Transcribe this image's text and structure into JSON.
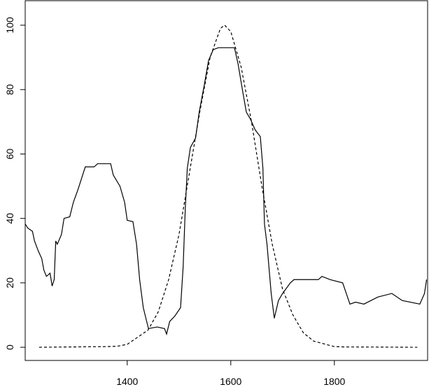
{
  "chart_data": {
    "type": "line",
    "xlim": [
      1203,
      1980
    ],
    "ylim": [
      -4.1,
      107.6
    ],
    "xticks": [
      1400,
      1600,
      1800
    ],
    "yticks": [
      0,
      20,
      40,
      60,
      80,
      100
    ],
    "series": [
      {
        "color": "#000000",
        "dash": false,
        "x": [
          1203,
          1208,
          1217,
          1221,
          1228,
          1235,
          1239,
          1244,
          1251,
          1255,
          1259,
          1262,
          1265,
          1273,
          1278,
          1289,
          1296,
          1305,
          1314,
          1319,
          1336,
          1343,
          1368,
          1373,
          1386,
          1395,
          1400,
          1411,
          1418,
          1424,
          1431,
          1441,
          1458,
          1472,
          1476,
          1482,
          1492,
          1503,
          1508,
          1512,
          1516,
          1522,
          1532,
          1539,
          1549,
          1557,
          1566,
          1576,
          1607,
          1614,
          1623,
          1630,
          1638,
          1647,
          1657,
          1662,
          1665,
          1670,
          1678,
          1684,
          1692,
          1700,
          1715,
          1722,
          1769,
          1776,
          1792,
          1816,
          1823,
          1830,
          1841,
          1857,
          1884,
          1911,
          1931,
          1965,
          1974,
          1978
        ],
        "values": [
          38.3,
          37,
          36,
          33,
          30,
          27.5,
          24,
          22,
          23,
          19,
          21,
          33,
          32,
          35,
          40,
          40.5,
          45,
          49,
          53.5,
          56,
          56,
          57,
          57,
          53.5,
          50,
          45,
          39.4,
          39,
          32,
          21,
          12.3,
          5.8,
          6.3,
          5.8,
          4.1,
          8,
          9.7,
          12.3,
          25,
          42.6,
          55.6,
          62,
          65,
          73,
          81.6,
          89,
          92.4,
          93,
          93,
          88,
          79.4,
          73,
          70.8,
          67.5,
          65.4,
          55.6,
          38.3,
          31.8,
          16.7,
          9,
          14.5,
          16.7,
          20,
          21,
          21,
          22,
          21,
          20,
          16.7,
          13.4,
          14,
          13.4,
          15.6,
          16.7,
          14.5,
          13.4,
          16.7,
          21
        ]
      },
      {
        "color": "#000000",
        "dash": true,
        "x": [
          1230,
          1360,
          1380,
          1400,
          1440,
          1460,
          1480,
          1500,
          1520,
          1540,
          1560,
          1580,
          1588,
          1600,
          1620,
          1640,
          1660,
          1680,
          1700,
          1720,
          1740,
          1760,
          1800,
          1820,
          1960
        ],
        "values": [
          0,
          0.2,
          0.3,
          0.9,
          5.3,
          11,
          21,
          35,
          54,
          73,
          90,
          99,
          100,
          98,
          87,
          70,
          50,
          32,
          18,
          10,
          4.5,
          1.9,
          0.2,
          0.1,
          0
        ]
      }
    ]
  }
}
